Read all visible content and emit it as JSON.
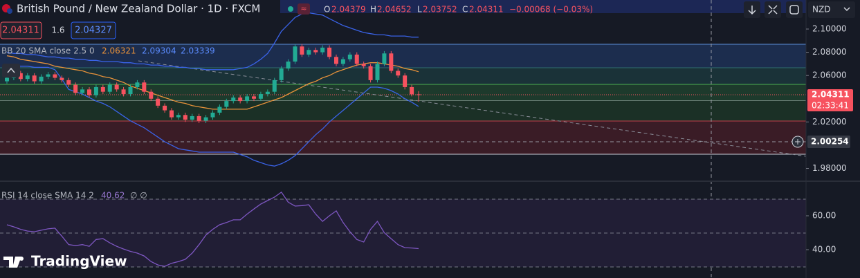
{
  "symbol_title": "British Pound / New Zealand Dollar · 1D · FXCM",
  "ohlc_letters": [
    "O",
    "H",
    "L",
    "C"
  ],
  "change": "−0.00068 (−0.03%)",
  "bid": "2.04311",
  "spread": "1.6",
  "ask": "2.04327",
  "currency": "NZD",
  "countdown": "02:33:41",
  "crosshair_price": "2.00254",
  "watermark": "TradingView",
  "chart_data": [
    {
      "type": "candlestick",
      "up_color": "#22ab94",
      "down_color": "#f7525f",
      "indicator": "BB 20 SMA close 2.5 0",
      "candles": [
        [
          2.055,
          2.06,
          2.053,
          2.058
        ],
        [
          2.058,
          2.064,
          2.056,
          2.062
        ],
        [
          2.062,
          2.064,
          2.055,
          2.057
        ],
        [
          2.057,
          2.062,
          2.055,
          2.06
        ],
        [
          2.06,
          2.062,
          2.053,
          2.055
        ],
        [
          2.055,
          2.061,
          2.053,
          2.059
        ],
        [
          2.059,
          2.063,
          2.057,
          2.061
        ],
        [
          2.061,
          2.063,
          2.056,
          2.058
        ],
        [
          2.058,
          2.06,
          2.054,
          2.056
        ],
        [
          2.056,
          2.058,
          2.05,
          2.052
        ],
        [
          2.052,
          2.054,
          2.043,
          2.045
        ],
        [
          2.045,
          2.05,
          2.043,
          2.048
        ],
        [
          2.048,
          2.05,
          2.041,
          2.043
        ],
        [
          2.043,
          2.052,
          2.041,
          2.05
        ],
        [
          2.05,
          2.052,
          2.044,
          2.046
        ],
        [
          2.046,
          2.054,
          2.044,
          2.052
        ],
        [
          2.052,
          2.054,
          2.046,
          2.048
        ],
        [
          2.048,
          2.05,
          2.042,
          2.044
        ],
        [
          2.044,
          2.052,
          2.042,
          2.05
        ],
        [
          2.05,
          2.056,
          2.048,
          2.054
        ],
        [
          2.054,
          2.056,
          2.044,
          2.046
        ],
        [
          2.046,
          2.048,
          2.038,
          2.04
        ],
        [
          2.04,
          2.042,
          2.032,
          2.034
        ],
        [
          2.034,
          2.036,
          2.028,
          2.03
        ],
        [
          2.03,
          2.032,
          2.022,
          2.024
        ],
        [
          2.024,
          2.028,
          2.022,
          2.026
        ],
        [
          2.026,
          2.028,
          2.02,
          2.022
        ],
        [
          2.022,
          2.027,
          2.02,
          2.025
        ],
        [
          2.025,
          2.027,
          2.019,
          2.021
        ],
        [
          2.021,
          2.026,
          2.019,
          2.024
        ],
        [
          2.024,
          2.03,
          2.022,
          2.028
        ],
        [
          2.028,
          2.035,
          2.026,
          2.033
        ],
        [
          2.033,
          2.04,
          2.031,
          2.038
        ],
        [
          2.038,
          2.043,
          2.036,
          2.041
        ],
        [
          2.041,
          2.043,
          2.036,
          2.038
        ],
        [
          2.038,
          2.044,
          2.036,
          2.042
        ],
        [
          2.042,
          2.044,
          2.038,
          2.04
        ],
        [
          2.04,
          2.046,
          2.038,
          2.044
        ],
        [
          2.044,
          2.048,
          2.042,
          2.046
        ],
        [
          2.046,
          2.058,
          2.044,
          2.056
        ],
        [
          2.056,
          2.068,
          2.054,
          2.066
        ],
        [
          2.066,
          2.074,
          2.064,
          2.072
        ],
        [
          2.072,
          2.087,
          2.07,
          2.085
        ],
        [
          2.085,
          2.087,
          2.076,
          2.078
        ],
        [
          2.078,
          2.084,
          2.076,
          2.082
        ],
        [
          2.082,
          2.084,
          2.078,
          2.08
        ],
        [
          2.08,
          2.086,
          2.078,
          2.084
        ],
        [
          2.084,
          2.086,
          2.074,
          2.076
        ],
        [
          2.076,
          2.078,
          2.068,
          2.07
        ],
        [
          2.07,
          2.076,
          2.068,
          2.074
        ],
        [
          2.074,
          2.08,
          2.072,
          2.078
        ],
        [
          2.078,
          2.08,
          2.068,
          2.07
        ],
        [
          2.07,
          2.072,
          2.066,
          2.068
        ],
        [
          2.068,
          2.07,
          2.054,
          2.056
        ],
        [
          2.056,
          2.072,
          2.054,
          2.07
        ],
        [
          2.07,
          2.081,
          2.068,
          2.079
        ],
        [
          2.079,
          2.081,
          2.062,
          2.064
        ],
        [
          2.064,
          2.066,
          2.058,
          2.06
        ],
        [
          2.06,
          2.062,
          2.048,
          2.05
        ],
        [
          2.05,
          2.052,
          2.042,
          2.04379
        ],
        [
          2.04379,
          2.04652,
          2.03752,
          2.04311
        ]
      ],
      "series": [
        {
          "color": "#e8923a",
          "values": [
            2.077,
            2.076,
            2.074,
            2.073,
            2.072,
            2.071,
            2.07,
            2.068,
            2.067,
            2.066,
            2.065,
            2.064,
            2.062,
            2.061,
            2.059,
            2.058,
            2.056,
            2.054,
            2.051,
            2.049,
            2.047,
            2.045,
            2.043,
            2.041,
            2.039,
            2.037,
            2.036,
            2.034,
            2.033,
            2.032,
            2.031,
            2.031,
            2.031,
            2.031,
            2.031,
            2.031,
            2.033,
            2.035,
            2.037,
            2.039,
            2.041,
            2.044,
            2.047,
            2.05,
            2.053,
            2.055,
            2.058,
            2.06,
            2.063,
            2.065,
            2.067,
            2.069,
            2.07,
            2.071,
            2.071,
            2.07,
            2.069,
            2.068,
            2.066,
            2.065,
            2.06321
          ]
        },
        {
          "color": "#3a63e8",
          "values": [
            2.08,
            2.079,
            2.079,
            2.078,
            2.078,
            2.077,
            2.076,
            2.076,
            2.075,
            2.075,
            2.074,
            2.074,
            2.073,
            2.073,
            2.072,
            2.072,
            2.072,
            2.071,
            2.071,
            2.07,
            2.07,
            2.069,
            2.069,
            2.068,
            2.068,
            2.067,
            2.067,
            2.066,
            2.066,
            2.065,
            2.065,
            2.065,
            2.065,
            2.065,
            2.066,
            2.067,
            2.07,
            2.074,
            2.079,
            2.088,
            2.098,
            2.104,
            2.11,
            2.113,
            2.114,
            2.113,
            2.112,
            2.109,
            2.106,
            2.103,
            2.101,
            2.099,
            2.097,
            2.096,
            2.095,
            2.095,
            2.094,
            2.094,
            2.094,
            2.093,
            2.09304
          ]
        },
        {
          "color": "#3a63e8",
          "values": [
            2.068,
            2.068,
            2.068,
            2.068,
            2.067,
            2.067,
            2.067,
            2.065,
            2.057,
            2.048,
            2.046,
            2.044,
            2.041,
            2.038,
            2.036,
            2.033,
            2.029,
            2.025,
            2.021,
            2.018,
            2.015,
            2.011,
            2.007,
            2.003,
            2.0,
            1.997,
            1.996,
            1.995,
            1.994,
            1.994,
            1.994,
            1.994,
            1.994,
            1.994,
            1.992,
            1.99,
            1.987,
            1.985,
            1.983,
            1.982,
            1.984,
            1.987,
            1.991,
            1.997,
            2.003,
            2.009,
            2.014,
            2.02,
            2.025,
            2.03,
            2.035,
            2.04,
            2.045,
            2.05,
            2.05,
            2.049,
            2.047,
            2.044,
            2.04,
            2.037,
            2.03339
          ]
        }
      ],
      "ylim": [
        1.969,
        2.125
      ],
      "yticks": [
        {
          "value": 2.1,
          "label": "2.10000"
        },
        {
          "value": 2.08,
          "label": "2.08000"
        },
        {
          "value": 2.06,
          "label": "2.06000"
        },
        {
          "value": 2.02,
          "label": "2.02000"
        },
        {
          "value": 1.98,
          "label": "1.98000"
        }
      ]
    },
    {
      "type": "line",
      "indicator": "RSI 14 close SMA 14 2",
      "extra": "∅ ∅",
      "series": [
        {
          "color": "#7e57c2",
          "values": [
            54.7,
            53.5,
            52,
            51,
            50.6,
            51.5,
            52.3,
            52.7,
            48,
            43,
            42.4,
            43,
            42,
            46,
            46.5,
            44,
            42,
            40.4,
            39,
            38,
            36.3,
            33,
            31,
            30.2,
            32,
            33,
            34.3,
            38,
            43,
            48.6,
            52,
            54.7,
            56,
            57.6,
            57.6,
            61,
            64,
            66.9,
            69,
            71.0,
            73.9,
            68,
            65.7,
            66,
            66.5,
            61,
            56.7,
            60,
            62.9,
            56,
            50.6,
            46,
            44.5,
            52,
            56.7,
            50,
            46.5,
            43,
            41.2,
            41,
            40.62
          ]
        }
      ],
      "ylim": [
        23.3,
        80.4
      ],
      "yticks": [
        {
          "value": 60,
          "label": "60.00"
        },
        {
          "value": 40,
          "label": "40.00"
        }
      ]
    }
  ]
}
